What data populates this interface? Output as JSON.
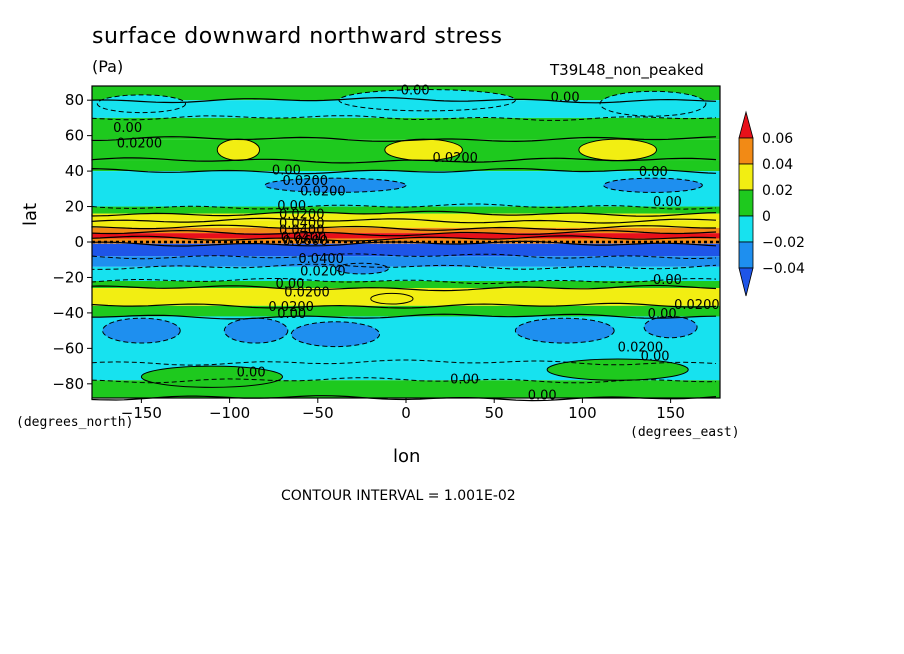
{
  "chart_data": {
    "type": "heatmap",
    "title": "surface downward northward stress",
    "units": "(Pa)",
    "run_label": "T39L48_non_peaked",
    "xlabel": "lon",
    "ylabel": "lat",
    "x_units_label": "(degrees_east)",
    "y_units_label": "(degrees_north)",
    "contour_interval_label": "CONTOUR INTERVAL = 1.001E-02",
    "xlim": [
      -178,
      178
    ],
    "ylim": [
      -88,
      88
    ],
    "x_ticks": [
      -150,
      -100,
      -50,
      0,
      50,
      100,
      150
    ],
    "x_tick_labels": [
      "−150",
      "−100",
      "−50",
      "0",
      "50",
      "100",
      "150"
    ],
    "y_ticks": [
      -80,
      -60,
      -40,
      -20,
      0,
      20,
      40,
      60,
      80
    ],
    "y_tick_labels": [
      "−80",
      "−60",
      "−40",
      "−20",
      "0",
      "20",
      "40",
      "60",
      "80"
    ],
    "colorbar": {
      "levels": [
        0.06,
        0.04,
        0.02,
        0,
        -0.02,
        -0.04
      ],
      "labels": [
        "0.06",
        "0.04",
        "0.02",
        "0",
        "−0.02",
        "−0.04"
      ],
      "colors": [
        "#e8101a",
        "#f28a15",
        "#f2ee12",
        "#1ec91e",
        "#17e2ef",
        "#1e8fef",
        "#1e55e8"
      ]
    },
    "lat_bands": [
      {
        "lat": [
          80,
          88
        ],
        "value": 0.005
      },
      {
        "lat": [
          70,
          80
        ],
        "value": -0.005
      },
      {
        "lat": [
          58,
          70
        ],
        "value": 0.005
      },
      {
        "lat": [
          46,
          58
        ],
        "value": 0.012
      },
      {
        "lat": [
          40,
          46
        ],
        "value": 0.005
      },
      {
        "lat": [
          20,
          40
        ],
        "value": -0.01
      },
      {
        "lat": [
          16,
          20
        ],
        "value": 0.005
      },
      {
        "lat": [
          12,
          16
        ],
        "value": 0.025
      },
      {
        "lat": [
          8,
          12
        ],
        "value": 0.035
      },
      {
        "lat": [
          5,
          8
        ],
        "value": 0.045
      },
      {
        "lat": [
          2,
          5
        ],
        "value": 0.07
      },
      {
        "lat": [
          -1,
          2
        ],
        "value": 0.05
      },
      {
        "lat": [
          -8,
          -1
        ],
        "value": -0.05
      },
      {
        "lat": [
          -14,
          -8
        ],
        "value": -0.03
      },
      {
        "lat": [
          -22,
          -14
        ],
        "value": -0.015
      },
      {
        "lat": [
          -26,
          -22
        ],
        "value": 0.005
      },
      {
        "lat": [
          -36,
          -26
        ],
        "value": 0.025
      },
      {
        "lat": [
          -42,
          -36
        ],
        "value": 0.005
      },
      {
        "lat": [
          -68,
          -42
        ],
        "value": -0.012
      },
      {
        "lat": [
          -78,
          -68
        ],
        "value": -0.005
      },
      {
        "lat": [
          -88,
          -78
        ],
        "value": 0.005
      }
    ],
    "patches": [
      {
        "lon": 12,
        "lat": 80,
        "rlon": 50,
        "rlat": 6,
        "value": -0.012
      },
      {
        "lon": 140,
        "lat": 78,
        "rlon": 30,
        "rlat": 7,
        "value": -0.012
      },
      {
        "lon": -150,
        "lat": 78,
        "rlon": 25,
        "rlat": 5,
        "value": -0.012
      },
      {
        "lon": -95,
        "lat": 52,
        "rlon": 12,
        "rlat": 6,
        "value": 0.025
      },
      {
        "lon": 10,
        "lat": 52,
        "rlon": 22,
        "rlat": 6,
        "value": 0.025
      },
      {
        "lon": 120,
        "lat": 52,
        "rlon": 22,
        "rlat": 6,
        "value": 0.025
      },
      {
        "lon": 140,
        "lat": 32,
        "rlon": 28,
        "rlat": 4,
        "value": -0.025
      },
      {
        "lon": -40,
        "lat": 32,
        "rlon": 40,
        "rlat": 4,
        "value": -0.025
      },
      {
        "lon": -25,
        "lat": -15,
        "rlon": 15,
        "rlat": 3,
        "value": -0.025
      },
      {
        "lon": -8,
        "lat": -32,
        "rlon": 12,
        "rlat": 3,
        "value": 0.035
      },
      {
        "lon": -150,
        "lat": -50,
        "rlon": 22,
        "rlat": 7,
        "value": -0.025
      },
      {
        "lon": -85,
        "lat": -50,
        "rlon": 18,
        "rlat": 7,
        "value": -0.025
      },
      {
        "lon": -40,
        "lat": -52,
        "rlon": 25,
        "rlat": 7,
        "value": -0.025
      },
      {
        "lon": 90,
        "lat": -50,
        "rlon": 28,
        "rlat": 7,
        "value": -0.025
      },
      {
        "lon": 150,
        "lat": -48,
        "rlon": 15,
        "rlat": 6,
        "value": -0.025
      },
      {
        "lon": 120,
        "lat": -72,
        "rlon": 40,
        "rlat": 6,
        "value": 0.005
      },
      {
        "lon": -110,
        "lat": -76,
        "rlon": 40,
        "rlat": 6,
        "value": 0.005
      }
    ],
    "contour_labels": [
      {
        "text": "0.00",
        "lon": -3,
        "lat": 86
      },
      {
        "text": "0.00",
        "lon": 82,
        "lat": 82
      },
      {
        "text": "0.00",
        "lon": -166,
        "lat": 65
      },
      {
        "text": "0.0200",
        "lon": -164,
        "lat": 56
      },
      {
        "text": "0.0200",
        "lon": 15,
        "lat": 48
      },
      {
        "text": "0.00",
        "lon": -76,
        "lat": 41
      },
      {
        "text": "0.0200",
        "lon": -70,
        "lat": 35
      },
      {
        "text": "0.00",
        "lon": 132,
        "lat": 40
      },
      {
        "text": "0.0200",
        "lon": -60,
        "lat": 29
      },
      {
        "text": "0.00",
        "lon": 140,
        "lat": 23
      },
      {
        "text": "0.00",
        "lon": -73,
        "lat": 21
      },
      {
        "text": "0.0200",
        "lon": -72,
        "lat": 16
      },
      {
        "text": "0.0400",
        "lon": -72,
        "lat": 11
      },
      {
        "text": "0.0400",
        "lon": -72,
        "lat": 7
      },
      {
        "text": "0.0400",
        "lon": -71,
        "lat": 3
      },
      {
        "text": "0.0600",
        "lon": -70,
        "lat": 1
      },
      {
        "text": "0.0400",
        "lon": -61,
        "lat": -9
      },
      {
        "text": "0.0200",
        "lon": -60,
        "lat": -16
      },
      {
        "text": "0.00",
        "lon": 140,
        "lat": -21
      },
      {
        "text": "0.00",
        "lon": -74,
        "lat": -23
      },
      {
        "text": "0.0200",
        "lon": -69,
        "lat": -28
      },
      {
        "text": "0.0200",
        "lon": -78,
        "lat": -36
      },
      {
        "text": "0.0200",
        "lon": 152,
        "lat": -35
      },
      {
        "text": "0.00",
        "lon": -73,
        "lat": -40
      },
      {
        "text": "0.00",
        "lon": 137,
        "lat": -40
      },
      {
        "text": "0.0200",
        "lon": 120,
        "lat": -59
      },
      {
        "text": "0.00",
        "lon": 133,
        "lat": -64
      },
      {
        "text": "0.00",
        "lon": -96,
        "lat": -73
      },
      {
        "text": "0.00",
        "lon": 25,
        "lat": -77
      },
      {
        "text": "0.00",
        "lon": 69,
        "lat": -86
      }
    ]
  }
}
